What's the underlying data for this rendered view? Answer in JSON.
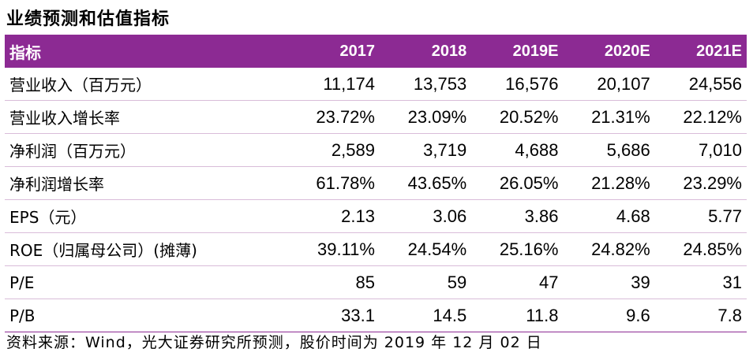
{
  "title": "业绩预测和估值指标",
  "table": {
    "headers": [
      "指标",
      "2017",
      "2018",
      "2019E",
      "2020E",
      "2021E"
    ],
    "rows": [
      [
        "营业收入（百万元）",
        "11,174",
        "13,753",
        "16,576",
        "20,107",
        "24,556"
      ],
      [
        "营业收入增长率",
        "23.72%",
        "23.09%",
        "20.52%",
        "21.31%",
        "22.12%"
      ],
      [
        "净利润（百万元）",
        "2,589",
        "3,719",
        "4,688",
        "5,686",
        "7,010"
      ],
      [
        "净利润增长率",
        "61.78%",
        "43.65%",
        "26.05%",
        "21.28%",
        "23.29%"
      ],
      [
        "EPS（元）",
        "2.13",
        "3.06",
        "3.86",
        "4.68",
        "5.77"
      ],
      [
        "ROE（归属母公司）(摊薄)",
        "39.11%",
        "24.54%",
        "25.16%",
        "24.82%",
        "24.85%"
      ],
      [
        "P/E",
        "85",
        "59",
        "47",
        "39",
        "31"
      ],
      [
        "P/B",
        "33.1",
        "14.5",
        "11.8",
        "9.6",
        "7.8"
      ]
    ]
  },
  "source": "资料来源：Wind，光大证券研究所预测，股价时间为 2019 年 12 月 02 日",
  "colors": {
    "header_bg": "#8c2a93",
    "header_text": "#ffffff",
    "row_border": "#d9bcd9"
  }
}
